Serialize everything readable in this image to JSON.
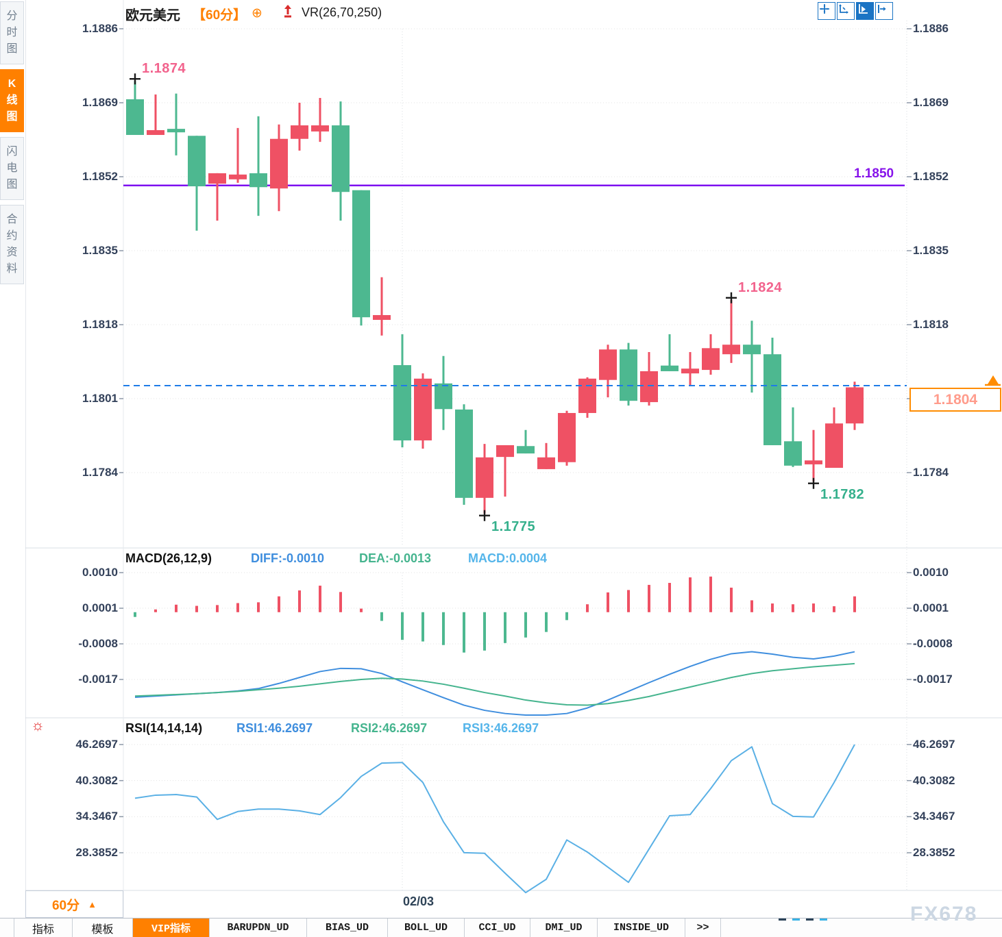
{
  "header": {
    "symbol": "欧元美元",
    "period": "【60分】",
    "plus_icon": "⊕",
    "indicator": "VR(26,70,250)"
  },
  "sidebar": {
    "items": [
      {
        "label": "分时图",
        "active": false
      },
      {
        "label": "K线图",
        "active": true
      },
      {
        "label": "闪电图",
        "active": false
      },
      {
        "label": "合约资料",
        "active": false
      }
    ]
  },
  "toolbar": {
    "icons": [
      {
        "name": "move-crosshair-icon",
        "active": false
      },
      {
        "name": "scale-axes-icon",
        "active": false
      },
      {
        "name": "play-axes-icon",
        "active": true
      },
      {
        "name": "collapse-panel-icon",
        "active": false
      }
    ]
  },
  "levels": {
    "resistance_label": "1.1850",
    "current_price_label": "1.1804"
  },
  "macd_header": {
    "name": "MACD(26,12,9)",
    "diff": "DIFF:-0.0010",
    "dea": "DEA:-0.0013",
    "macd": "MACD:0.0004"
  },
  "rsi_header": {
    "name": "RSI(14,14,14)",
    "rsi1": "RSI1:46.2697",
    "rsi2": "RSI2:46.2697",
    "rsi3": "RSI3:46.2697",
    "sun_icon": "☼"
  },
  "bottom": {
    "period": "60分",
    "period_arrow": "▲",
    "date": "02/03",
    "watermark": "FX678",
    "tabs": [
      {
        "label": "指标",
        "active": false
      },
      {
        "label": "模板",
        "active": false
      },
      {
        "label": "VIP指标",
        "active": true
      },
      {
        "label": "BARUPDN_UD",
        "active": false
      },
      {
        "label": "BIAS_UD",
        "active": false
      },
      {
        "label": "BOLL_UD",
        "active": false
      },
      {
        "label": "CCI_UD",
        "active": false
      },
      {
        "label": "DMI_UD",
        "active": false
      },
      {
        "label": "INSIDE_UD",
        "active": false
      },
      {
        "label": ">>",
        "active": false
      }
    ]
  },
  "colors": {
    "up": "#ef5164",
    "down": "#4db890",
    "high_label": "#f2638d",
    "low_label": "#35b08c",
    "purple": "#7d10f0",
    "current_blue": "#1e7ce8",
    "orange": "#ff8c00",
    "diff_blue": "#3f8ede",
    "dea_green": "#45b48e",
    "macd_cyan": "#55b5ea",
    "rsi_line": "#5ab0e5",
    "grid": "#e3e3e3",
    "separator": "#d9dfe6"
  },
  "chart_data": {
    "type": "candlestick",
    "symbol": "欧元美元",
    "interval": "60分",
    "price_ticks": [
      "1.1886",
      "1.1869",
      "1.1852",
      "1.1835",
      "1.1818",
      "1.1801",
      "1.1784"
    ],
    "price_range": [
      1.1784,
      1.1886
    ],
    "candles": [
      [
        1.18698,
        1.1874,
        1.18616,
        1.18616
      ],
      [
        1.18616,
        1.18709,
        1.18616,
        1.18627
      ],
      [
        1.1863,
        1.18711,
        1.18569,
        1.18622
      ],
      [
        1.18614,
        1.18614,
        1.18396,
        1.18498
      ],
      [
        1.18504,
        1.18528,
        1.18419,
        1.18528
      ],
      [
        1.18514,
        1.18632,
        1.18506,
        1.18525
      ],
      [
        1.18528,
        1.18659,
        1.1843,
        1.18496
      ],
      [
        1.18493,
        1.1864,
        1.18441,
        1.18607
      ],
      [
        1.18607,
        1.1869,
        1.1858,
        1.18638
      ],
      [
        1.18624,
        1.18701,
        1.186,
        1.18638
      ],
      [
        1.18638,
        1.18693,
        1.18419,
        1.18485
      ],
      [
        1.18489,
        1.18489,
        1.18178,
        1.18197
      ],
      [
        1.18191,
        1.18289,
        1.18155,
        1.18202
      ],
      [
        1.18087,
        1.18158,
        1.17898,
        1.17914
      ],
      [
        1.17914,
        1.18068,
        1.17895,
        1.18056
      ],
      [
        1.18045,
        1.18108,
        1.17938,
        1.17986
      ],
      [
        1.17985,
        1.17997,
        1.17766,
        1.17782
      ],
      [
        1.17782,
        1.17906,
        1.17746,
        1.17875
      ],
      [
        1.17876,
        1.17903,
        1.17785,
        1.17903
      ],
      [
        1.17901,
        1.17938,
        1.17884,
        1.17884
      ],
      [
        1.17848,
        1.17908,
        1.17848,
        1.17875
      ],
      [
        1.17864,
        1.17982,
        1.17856,
        1.17977
      ],
      [
        1.17977,
        1.18059,
        1.17966,
        1.18056
      ],
      [
        1.18053,
        1.18134,
        1.18013,
        1.18123
      ],
      [
        1.18123,
        1.18138,
        1.17994,
        1.18005
      ],
      [
        1.18002,
        1.18117,
        1.17994,
        1.18073
      ],
      [
        1.18086,
        1.18158,
        1.18073,
        1.18073
      ],
      [
        1.18068,
        1.18117,
        1.1804,
        1.18079
      ],
      [
        1.18076,
        1.18158,
        1.18065,
        1.18126
      ],
      [
        1.18112,
        1.18237,
        1.18092,
        1.18134
      ],
      [
        1.18134,
        1.18189,
        1.18024,
        1.18112
      ],
      [
        1.18112,
        1.1815,
        1.17903,
        1.17903
      ],
      [
        1.17912,
        1.1799,
        1.17853,
        1.17856
      ],
      [
        1.17859,
        1.17938,
        1.1782,
        1.17868
      ],
      [
        1.17851,
        1.1799,
        1.17851,
        1.17953
      ],
      [
        1.17953,
        1.18049,
        1.17938,
        1.18036
      ]
    ],
    "annotations": [
      {
        "index": 0,
        "type": "high",
        "text": "1.1874"
      },
      {
        "index": 17,
        "type": "low",
        "text": "1.1775"
      },
      {
        "index": 29,
        "type": "high",
        "text": "1.1824"
      },
      {
        "index": 33,
        "type": "low",
        "text": "1.1782"
      }
    ],
    "overlays": {
      "resistance_level": 1.185,
      "current_price": 1.1804
    },
    "date_gridline": {
      "label": "02/03",
      "candle_index": 13
    },
    "macd": {
      "params": "26,12,9",
      "ticks": [
        "0.0010",
        "0.0001",
        "-0.0008",
        "-0.0017"
      ],
      "hist": [
        -0.00012,
        7e-05,
        0.00019,
        0.00016,
        0.00018,
        0.00023,
        0.00025,
        0.0004,
        0.00055,
        0.00067,
        0.00051,
        9e-05,
        -0.00022,
        -0.0007,
        -0.00074,
        -0.00083,
        -0.00102,
        -0.00097,
        -0.00078,
        -0.00064,
        -0.0005,
        -0.0002,
        0.0002,
        0.0005,
        0.00056,
        0.00069,
        0.00074,
        0.00088,
        0.0009,
        0.00062,
        0.0003,
        0.00022,
        0.0002,
        0.00022,
        0.00015,
        0.0004
      ],
      "diff": [
        -0.00215,
        -0.00212,
        -0.00209,
        -0.00206,
        -0.00203,
        -0.00199,
        -0.00193,
        -0.0018,
        -0.00165,
        -0.0015,
        -0.00142,
        -0.00143,
        -0.00155,
        -0.00176,
        -0.00196,
        -0.00216,
        -0.00235,
        -0.00248,
        -0.00256,
        -0.0026,
        -0.0026,
        -0.00256,
        -0.00242,
        -0.00222,
        -0.002,
        -0.00178,
        -0.00157,
        -0.00137,
        -0.00119,
        -0.00105,
        -0.001,
        -0.00106,
        -0.00114,
        -0.00118,
        -0.00111,
        -0.001
      ],
      "dea": [
        -0.00212,
        -0.0021,
        -0.00208,
        -0.00206,
        -0.00203,
        -0.002,
        -0.00196,
        -0.00192,
        -0.00187,
        -0.00181,
        -0.00175,
        -0.0017,
        -0.00167,
        -0.00169,
        -0.00174,
        -0.00182,
        -0.00192,
        -0.00203,
        -0.00212,
        -0.00222,
        -0.00229,
        -0.00234,
        -0.00235,
        -0.00231,
        -0.00223,
        -0.00213,
        -0.00201,
        -0.00189,
        -0.00177,
        -0.00165,
        -0.00155,
        -0.00148,
        -0.00143,
        -0.00138,
        -0.00134,
        -0.0013
      ]
    },
    "rsi": {
      "params": "14,14,14",
      "ticks": [
        "46.2697",
        "40.3082",
        "34.3467",
        "28.3852"
      ],
      "values": [
        37.4,
        37.9,
        38.0,
        37.6,
        33.9,
        35.2,
        35.6,
        35.6,
        35.3,
        34.7,
        37.5,
        41.0,
        43.2,
        43.3,
        40.0,
        33.5,
        28.4,
        28.3,
        25.0,
        21.8,
        24.0,
        30.5,
        28.5,
        26.0,
        23.5,
        29.0,
        34.5,
        34.7,
        39.0,
        43.6,
        45.9,
        36.5,
        34.4,
        34.3,
        40.0,
        46.2697
      ]
    }
  }
}
